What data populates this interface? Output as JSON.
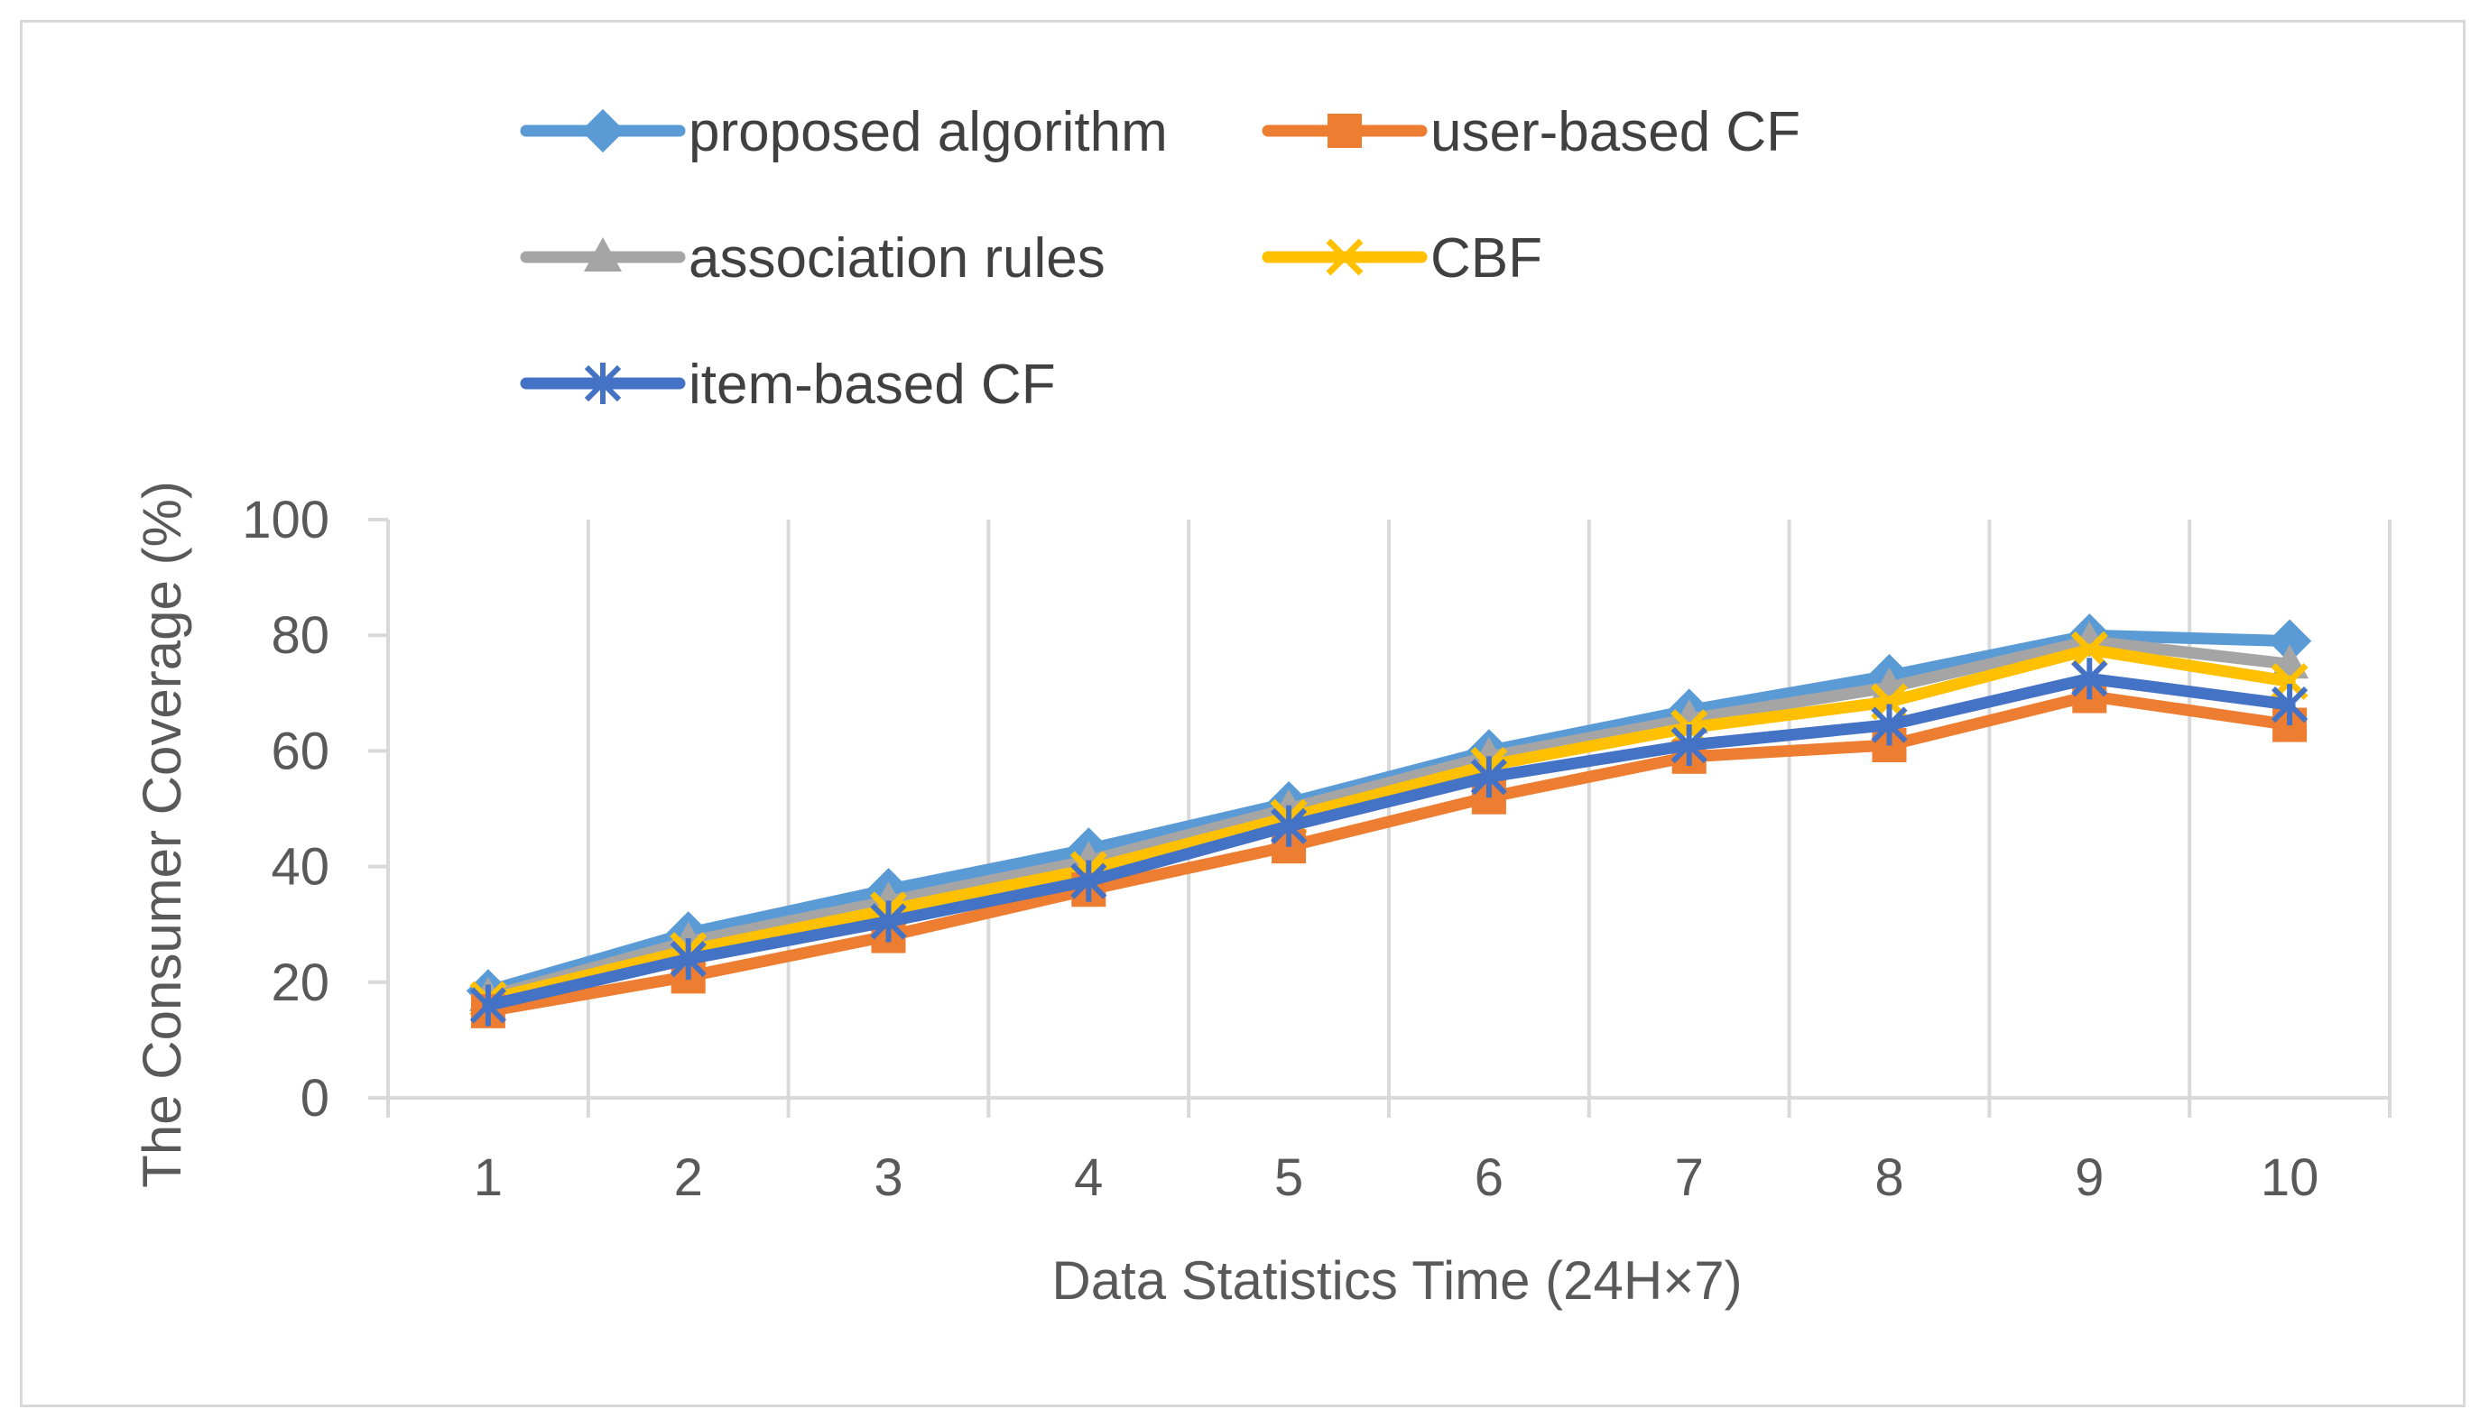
{
  "chart_data": {
    "type": "line",
    "title": "",
    "xlabel": "Data Statistics Time (24H×7)",
    "ylabel": "The Consumer Coverage  (%)",
    "categories": [
      "1",
      "2",
      "3",
      "4",
      "5",
      "6",
      "7",
      "8",
      "9",
      "10"
    ],
    "ylim": [
      0,
      100
    ],
    "yticks": [
      0,
      20,
      40,
      60,
      80,
      100
    ],
    "grid": "vertical",
    "legend_position": "top",
    "series": [
      {
        "name": "proposed algorithm",
        "color": "#5b9bd5",
        "marker": "diamond",
        "values": [
          18.5,
          28.5,
          36,
          43,
          51,
          60,
          67,
          73,
          80,
          79
        ]
      },
      {
        "name": "user-based CF",
        "color": "#ed7d31",
        "marker": "square",
        "values": [
          15,
          21,
          28,
          36,
          43.5,
          52,
          59,
          61,
          69.5,
          64.5
        ]
      },
      {
        "name": "association rules",
        "color": "#a5a5a5",
        "marker": "triangle",
        "values": [
          17.5,
          27,
          34,
          41,
          50,
          59,
          65.5,
          71,
          79,
          75
        ]
      },
      {
        "name": "CBF",
        "color": "#ffc000",
        "marker": "x",
        "values": [
          17,
          25.5,
          32.5,
          39.5,
          48.5,
          57.5,
          64,
          68.5,
          77.5,
          72
        ]
      },
      {
        "name": "item-based CF",
        "color": "#4472c4",
        "marker": "asterisk",
        "values": [
          16,
          24,
          30.5,
          37.5,
          47,
          55.5,
          61,
          64.5,
          72.5,
          68
        ]
      }
    ]
  }
}
